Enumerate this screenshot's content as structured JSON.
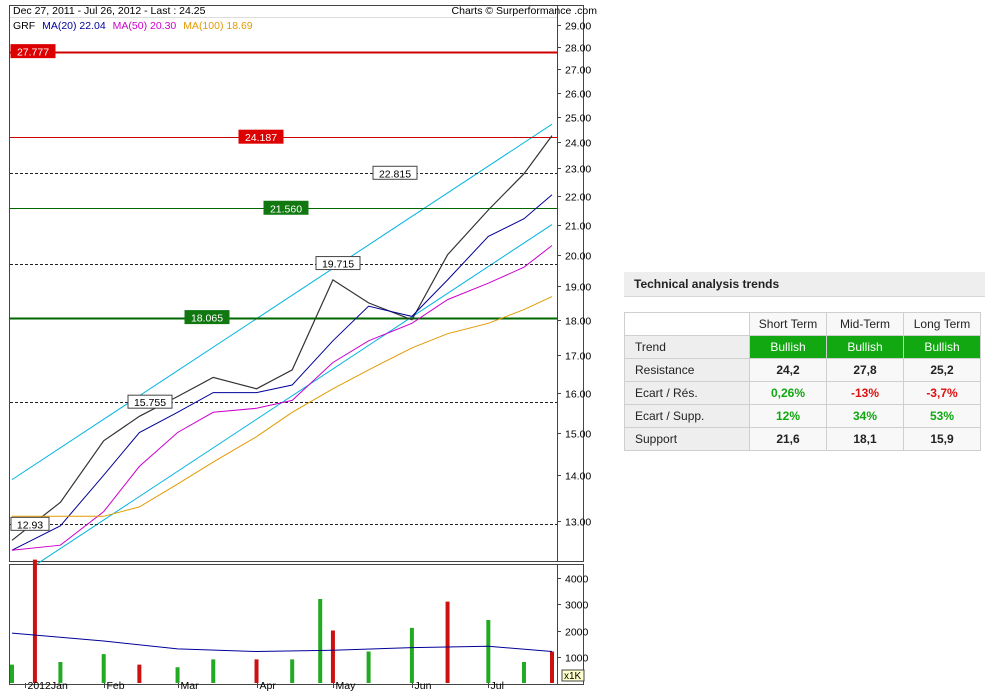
{
  "header": {
    "date_range": "Dec 27, 2011 - Jul 26, 2012 - Last : 24.25",
    "credit": "Charts © Surperformance .com"
  },
  "legend": {
    "ticker": "GRF",
    "ma20": "MA(20) 22.04",
    "ma50": "MA(50) 20.30",
    "ma100": "MA(100) 18.69"
  },
  "colors": {
    "up": "#22aa22",
    "down": "#cc1111",
    "ma20": "#000099",
    "ma50": "#cc00cc",
    "ma100": "#e39a00",
    "channel": "#00b4e0",
    "resistance": "#cc0000",
    "support": "#006600",
    "volume_avg": "#000099"
  },
  "chart_data": [
    {
      "type": "line",
      "title": "GRF",
      "x_type": "date",
      "x_ticks": [
        "2012Jan",
        "Feb",
        "Mar",
        "Apr",
        "May",
        "Jun",
        "Jul"
      ],
      "y_ticks": [
        "13.00",
        "14.00",
        "15.00",
        "16.00",
        "17.00",
        "18.00",
        "19.00",
        "20.00",
        "21.00",
        "22.00",
        "23.00",
        "24.00",
        "25.00",
        "26.00",
        "27.00",
        "28.00",
        "29.00"
      ],
      "ylim": [
        12.3,
        29.3
      ],
      "ylog": true,
      "grid": false,
      "series": [
        {
          "name": "GRF",
          "x": [
            "2011-12-27",
            "2012-01-15",
            "2012-02-01",
            "2012-02-15",
            "2012-03-01",
            "2012-03-15",
            "2012-04-01",
            "2012-04-15",
            "2012-05-01",
            "2012-05-15",
            "2012-06-01",
            "2012-06-15",
            "2012-07-01",
            "2012-07-15",
            "2012-07-26"
          ],
          "values": [
            12.6,
            13.4,
            14.8,
            15.4,
            15.9,
            16.4,
            16.1,
            16.6,
            19.2,
            18.5,
            18.0,
            20.0,
            21.5,
            22.8,
            24.25
          ]
        },
        {
          "name": "MA(20)",
          "x": [
            "2011-12-27",
            "2012-01-15",
            "2012-02-01",
            "2012-02-15",
            "2012-03-01",
            "2012-03-15",
            "2012-04-01",
            "2012-04-15",
            "2012-05-01",
            "2012-05-15",
            "2012-06-01",
            "2012-06-15",
            "2012-07-01",
            "2012-07-15",
            "2012-07-26"
          ],
          "values": [
            12.4,
            12.9,
            14.0,
            15.0,
            15.5,
            16.0,
            16.0,
            16.2,
            17.4,
            18.4,
            18.1,
            19.2,
            20.6,
            21.2,
            22.04
          ]
        },
        {
          "name": "MA(50)",
          "x": [
            "2011-12-27",
            "2012-01-15",
            "2012-02-01",
            "2012-02-15",
            "2012-03-01",
            "2012-03-15",
            "2012-04-01",
            "2012-04-15",
            "2012-05-01",
            "2012-05-15",
            "2012-06-01",
            "2012-06-15",
            "2012-07-01",
            "2012-07-15",
            "2012-07-26"
          ],
          "values": [
            12.4,
            12.5,
            13.2,
            14.2,
            15.0,
            15.5,
            15.6,
            15.8,
            16.8,
            17.4,
            17.9,
            18.6,
            19.1,
            19.6,
            20.3
          ]
        },
        {
          "name": "MA(100)",
          "x": [
            "2011-12-27",
            "2012-01-15",
            "2012-02-01",
            "2012-02-15",
            "2012-03-01",
            "2012-03-15",
            "2012-04-01",
            "2012-04-15",
            "2012-05-01",
            "2012-05-15",
            "2012-06-01",
            "2012-06-15",
            "2012-07-01",
            "2012-07-15",
            "2012-07-26"
          ],
          "values": [
            13.1,
            13.1,
            13.1,
            13.3,
            13.8,
            14.3,
            14.9,
            15.5,
            16.1,
            16.6,
            17.2,
            17.6,
            17.9,
            18.3,
            18.69
          ]
        }
      ],
      "levels": [
        {
          "label": "27.777",
          "value": 27.777,
          "kind": "resistance",
          "style": "solid"
        },
        {
          "label": "24.187",
          "value": 24.187,
          "kind": "resistance",
          "style": "solid"
        },
        {
          "label": "22.815",
          "value": 22.815,
          "kind": "neutral",
          "style": "dashed"
        },
        {
          "label": "21.560",
          "value": 21.56,
          "kind": "support",
          "style": "solid"
        },
        {
          "label": "19.715",
          "value": 19.715,
          "kind": "neutral",
          "style": "dashed"
        },
        {
          "label": "18.065",
          "value": 18.065,
          "kind": "support",
          "style": "solid"
        },
        {
          "label": "15.755",
          "value": 15.755,
          "kind": "neutral",
          "style": "dashed"
        },
        {
          "label": "12.93",
          "value": 12.93,
          "kind": "neutral",
          "style": "dashed"
        }
      ],
      "channel": [
        {
          "x": [
            "2011-12-27",
            "2012-07-26"
          ],
          "values": [
            13.9,
            24.7
          ]
        },
        {
          "x": [
            "2012-01-05",
            "2012-07-26"
          ],
          "values": [
            12.1,
            21.0
          ]
        }
      ]
    },
    {
      "type": "bar",
      "y_ticks": [
        "1000",
        "2000",
        "3000",
        "4000"
      ],
      "ylim": [
        0,
        4600
      ],
      "unit_label": "x1K",
      "series": [
        {
          "name": "volume",
          "x": [
            "2011-12-27",
            "2012-01-05",
            "2012-01-15",
            "2012-02-01",
            "2012-02-15",
            "2012-03-01",
            "2012-03-15",
            "2012-04-01",
            "2012-04-15",
            "2012-04-26",
            "2012-05-01",
            "2012-05-15",
            "2012-06-01",
            "2012-06-15",
            "2012-07-01",
            "2012-07-15",
            "2012-07-26"
          ],
          "values": [
            700,
            4700,
            800,
            1100,
            700,
            600,
            900,
            900,
            900,
            3200,
            2000,
            1200,
            2100,
            3100,
            2400,
            800,
            1200
          ]
        },
        {
          "name": "volume average",
          "x": [
            "2011-12-27",
            "2012-02-01",
            "2012-03-01",
            "2012-04-01",
            "2012-05-01",
            "2012-06-01",
            "2012-07-01",
            "2012-07-26"
          ],
          "values": [
            1900,
            1600,
            1300,
            1200,
            1250,
            1350,
            1400,
            1200
          ]
        }
      ]
    }
  ],
  "trends": {
    "title": "Technical analysis trends",
    "columns": [
      "Short Term",
      "Mid-Term",
      "Long Term"
    ],
    "rows": [
      {
        "label": "Trend",
        "values": [
          "Bullish",
          "Bullish",
          "Bullish"
        ]
      },
      {
        "label": "Resistance",
        "values": [
          "24,2",
          "27,8",
          "25,2"
        ]
      },
      {
        "label": "Ecart / Rés.",
        "values": [
          "0,26%",
          "-13%",
          "-3,7%"
        ]
      },
      {
        "label": "Ecart / Supp.",
        "values": [
          "12%",
          "34%",
          "53%"
        ]
      },
      {
        "label": "Support",
        "values": [
          "21,6",
          "18,1",
          "15,9"
        ]
      }
    ]
  }
}
